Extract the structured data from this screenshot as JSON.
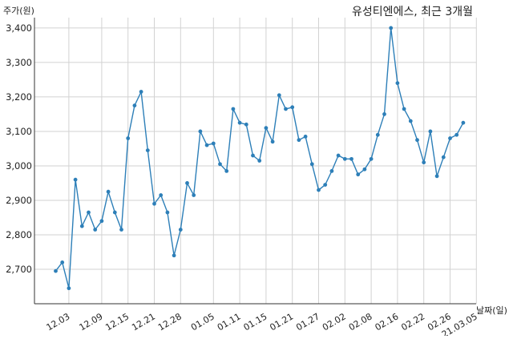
{
  "chart_data": {
    "type": "line",
    "title": "유성티엔에스, 최근 3개월",
    "ylabel": "주가(원)",
    "xlabel": "날짜(일)",
    "ylim": [
      2600,
      3430
    ],
    "yticks": [
      2700,
      2800,
      2900,
      3000,
      3100,
      3200,
      3300,
      3400
    ],
    "ytick_labels": [
      "2,700",
      "2,800",
      "2,900",
      "3,000",
      "3,100",
      "3,200",
      "3,300",
      "3,400"
    ],
    "xtick_labels": [
      "12.03",
      "12.09",
      "12.15",
      "12.21",
      "12.28",
      "01.05",
      "01.11",
      "01.15",
      "01.21",
      "01.27",
      "02.02",
      "02.08",
      "02.16",
      "02.22",
      "02.26",
      "21.03.05"
    ],
    "xtick_positions": [
      2,
      7,
      11,
      15,
      19,
      24,
      28,
      32,
      36,
      40,
      44,
      48,
      52,
      56,
      60,
      64
    ],
    "grid": true,
    "colors": {
      "series": "#2d7fb8",
      "grid": "#d2d2d2"
    },
    "series": [
      {
        "values": [
          2695,
          2720,
          2645,
          2960,
          2825,
          2865,
          2815,
          2840,
          2925,
          2865,
          2815,
          3080,
          3175,
          3215,
          3045,
          2890,
          2915,
          2865,
          2740,
          2815,
          2950,
          2915,
          3100,
          3060,
          3065,
          3005,
          2985,
          3165,
          3125,
          3120,
          3030,
          3015,
          3110,
          3070,
          3205,
          3165,
          3170,
          3075,
          3085,
          3005,
          2930,
          2945,
          2985,
          3030,
          3020,
          3020,
          2975,
          2990,
          3020,
          3090,
          3150,
          3400,
          3240,
          3165,
          3130,
          3075,
          3010,
          3100,
          2970,
          3025,
          3080,
          3090,
          3125
        ]
      }
    ]
  }
}
